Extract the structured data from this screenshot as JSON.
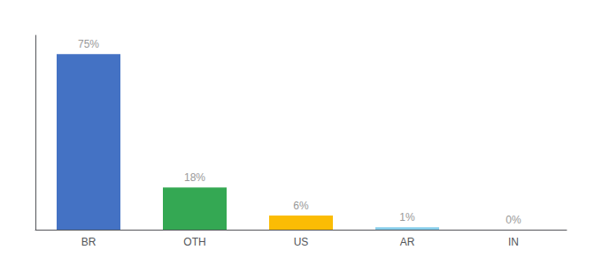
{
  "chart_data": {
    "type": "bar",
    "categories": [
      "BR",
      "OTH",
      "US",
      "AR",
      "IN"
    ],
    "values": [
      75,
      18,
      6,
      1,
      0
    ],
    "value_labels": [
      "75%",
      "18%",
      "6%",
      "1%",
      "0%"
    ],
    "colors": [
      "#4472c4",
      "#34a853",
      "#fbbc04",
      "#87ceeb",
      "#87ceeb"
    ],
    "ylim": [
      0,
      83
    ],
    "data_labels": true,
    "tick_labels": "x",
    "grid": false
  }
}
